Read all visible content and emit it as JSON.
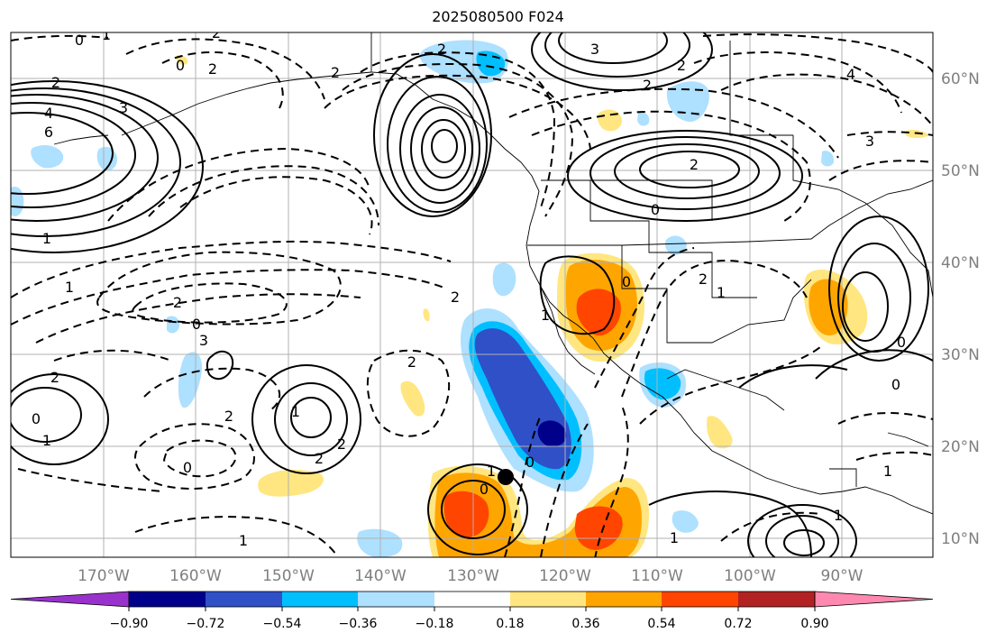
{
  "title": "2025080500 F024",
  "lon_labels": [
    "170°W",
    "160°W",
    "150°W",
    "140°W",
    "130°W",
    "120°W",
    "110°W",
    "100°W",
    "90°W"
  ],
  "lat_labels": [
    "60°N",
    "50°N",
    "40°N",
    "30°N",
    "20°N",
    "10°N"
  ],
  "colorbar": {
    "tick_labels": [
      "−0.90",
      "−0.72",
      "−0.54",
      "−0.36",
      "−0.18",
      "0.18",
      "0.36",
      "0.54",
      "0.72",
      "0.90"
    ],
    "colors": [
      "#9932cc",
      "#00008b",
      "#3050c8",
      "#00bfff",
      "#aee0ff",
      "#ffffff",
      "#ffe680",
      "#ffa500",
      "#ff4500",
      "#b22222",
      "#ff88b0"
    ]
  },
  "contour_labels": [
    "0",
    "1",
    "2",
    "0",
    "2",
    "2",
    "2",
    "3",
    "4",
    "6",
    "2",
    "3",
    "2",
    "4",
    "2",
    "3",
    "2",
    "0",
    "1",
    "1",
    "2",
    "2",
    "1",
    "0",
    "2",
    "1",
    "0",
    "3",
    "2",
    "2",
    "2",
    "0",
    "1",
    "0",
    "1",
    "2",
    "2",
    "1",
    "0",
    "0",
    "1",
    "1",
    "1",
    "1",
    "0",
    "0"
  ]
}
